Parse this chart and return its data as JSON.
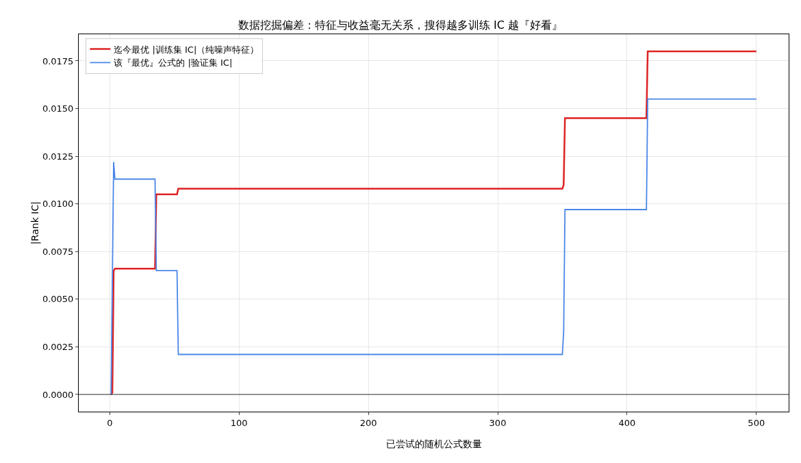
{
  "chart_data": {
    "type": "line",
    "title": "数据挖掘偏差：特征与收益毫无关系，搜得越多训练 IC 越『好看』",
    "xlabel": "已尝试的随机公式数量",
    "ylabel": "|Rank IC|",
    "xlim": [
      -24,
      525
    ],
    "xticks": [
      0,
      100,
      200,
      300,
      400,
      500
    ],
    "ylim": [
      -0.0009,
      0.0189
    ],
    "yticks": [
      {
        "value": 0,
        "label": "0.0000"
      },
      {
        "value": 0.0025,
        "label": "0.0025"
      },
      {
        "value": 0.005,
        "label": "0.0050"
      },
      {
        "value": 0.0075,
        "label": "0.0075"
      },
      {
        "value": 0.01,
        "label": "0.0100"
      },
      {
        "value": 0.0125,
        "label": "0.0125"
      },
      {
        "value": 0.015,
        "label": "0.0150"
      },
      {
        "value": 0.0175,
        "label": "0.0175"
      }
    ],
    "grid": true,
    "legend": "top left",
    "marker": "none",
    "line_style": "solid",
    "ref_lines": [
      {
        "axis": "y",
        "value": 0,
        "color": "#000000"
      }
    ],
    "series": [
      {
        "name": "迄今最优 |训练集 IC|（纯噪声特征）",
        "color": "#dd2222",
        "x": [
          1,
          2,
          3,
          4,
          35,
          36,
          52,
          53,
          350,
          351,
          352,
          415,
          416,
          500
        ],
        "values": [
          0,
          0.0001,
          0.0065,
          0.0066,
          0.0066,
          0.0105,
          0.0105,
          0.0108,
          0.0108,
          0.011,
          0.0145,
          0.0145,
          0.018,
          0.018
        ]
      },
      {
        "name": "该『最优』公式的 |验证集 IC|",
        "color": "#4a86e8",
        "x": [
          1,
          3,
          4,
          35,
          36,
          52,
          53,
          350,
          351,
          352,
          415,
          416,
          500
        ],
        "values": [
          0,
          0.0122,
          0.0113,
          0.0113,
          0.0065,
          0.0065,
          0.0021,
          0.0021,
          0.0033,
          0.0097,
          0.0097,
          0.0155,
          0.0155
        ]
      }
    ]
  }
}
